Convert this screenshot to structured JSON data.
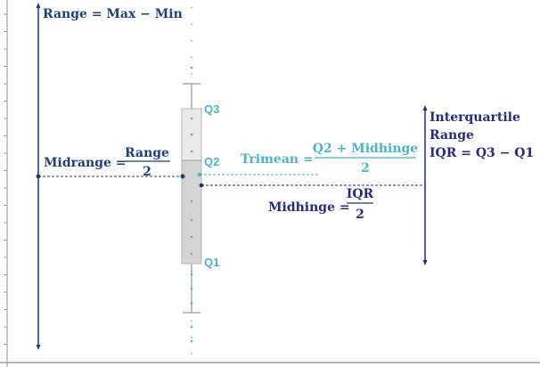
{
  "colors": {
    "dark_blue": "#1f3f7a",
    "navy": "#2a2a7a",
    "teal": "#4fb3c8",
    "box_top": "#e9e9e9",
    "box_bottom": "#d5d5d5",
    "axis": "#8a8a8a"
  },
  "quartiles": {
    "q3": "Q3",
    "q2": "Q2",
    "q1": "Q1"
  },
  "range": {
    "text": "Range = Max − Min"
  },
  "midrange": {
    "label": "Midrange =",
    "numerator": "Range",
    "denominator": "2"
  },
  "trimean": {
    "label": "Trimean =",
    "numerator": "Q2 + Midhinge",
    "denominator": "2"
  },
  "midhinge": {
    "label": "Midhinge =",
    "numerator": "IQR",
    "denominator": "2"
  },
  "iqr": {
    "line1": "Interquartile",
    "line2": "Range",
    "line3": "IQR = Q3 − Q1"
  }
}
